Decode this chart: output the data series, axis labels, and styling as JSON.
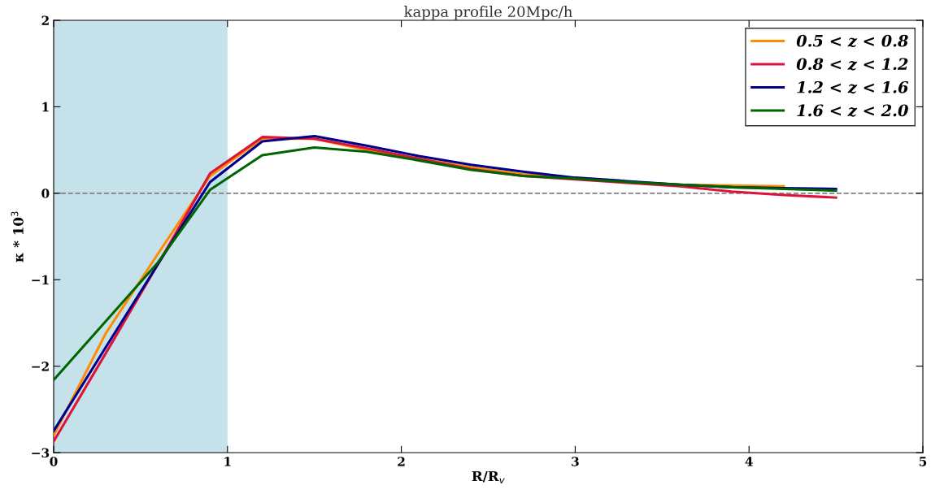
{
  "chart_data": {
    "type": "line",
    "title": "kappa profile 20Mpc/h",
    "xlabel": "R/R$_{v}$",
    "ylabel": "κ * 10$^{3}$",
    "x": [
      0,
      0.3,
      0.6,
      0.9,
      1.2,
      1.5,
      1.8,
      2.1,
      2.4,
      2.7,
      3.0,
      3.3,
      3.6,
      3.9,
      4.2,
      4.5
    ],
    "series": [
      {
        "name": "0.5 < z < 0.8",
        "color": "#ff8c00",
        "values": [
          -2.8,
          -1.62,
          -0.7,
          0.2,
          0.63,
          0.63,
          0.5,
          0.4,
          0.3,
          0.22,
          0.17,
          0.13,
          0.1,
          0.09,
          0.08,
          null
        ]
      },
      {
        "name": "0.8 < z < 1.2",
        "color": "#dc143c",
        "values": [
          -2.87,
          -1.85,
          -0.82,
          0.23,
          0.65,
          0.63,
          0.52,
          0.4,
          0.28,
          0.2,
          0.16,
          0.12,
          0.08,
          0.02,
          -0.02,
          -0.05
        ]
      },
      {
        "name": "1.2 < z < 1.6",
        "color": "#00008b",
        "values": [
          -2.75,
          -1.78,
          -0.82,
          0.13,
          0.6,
          0.66,
          0.55,
          0.43,
          0.33,
          0.25,
          0.18,
          0.14,
          0.1,
          0.07,
          0.06,
          0.05
        ]
      },
      {
        "name": "1.6 < z < 2.0",
        "color": "#006400",
        "values": [
          -2.16,
          -1.48,
          -0.8,
          0.04,
          0.44,
          0.53,
          0.48,
          0.38,
          0.27,
          0.2,
          0.17,
          0.13,
          0.1,
          0.07,
          0.05,
          0.03
        ]
      }
    ],
    "xlim": [
      0,
      5
    ],
    "xticks": [
      0,
      1,
      2,
      3,
      4,
      5
    ],
    "ylim": [
      -3,
      2
    ],
    "yticks": [
      {
        "value": -3,
        "label": "−3"
      },
      {
        "value": -2,
        "label": "−2"
      },
      {
        "value": -1,
        "label": "−1"
      },
      0,
      1,
      2
    ],
    "ref_lines": [
      {
        "axis": "y",
        "value": 0,
        "color": "#808080",
        "line_style": "dashed"
      }
    ],
    "bands": [
      {
        "axis": "x",
        "from": 0,
        "to": 1,
        "color": "#c5e2eb"
      }
    ],
    "grid": false,
    "legend": "top right",
    "line_style": "solid",
    "marker": "none"
  }
}
